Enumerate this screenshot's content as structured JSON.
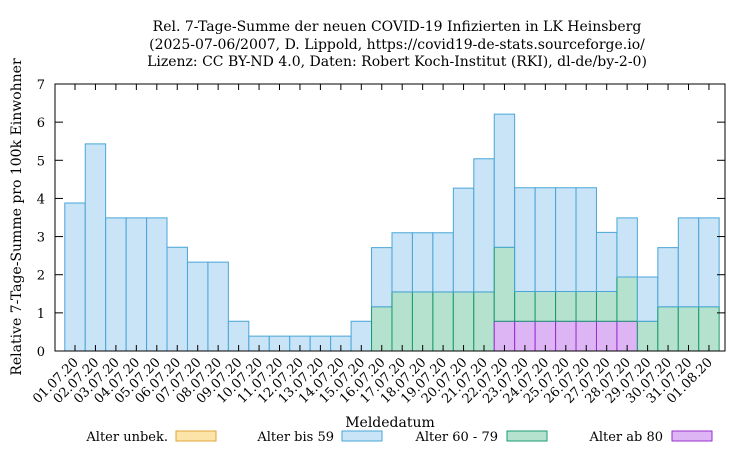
{
  "chart_data": {
    "type": "bar",
    "stacked": true,
    "title_lines": [
      "Rel. 7-Tage-Summe der neuen COVID-19 Infizierten in LK Heinsberg",
      "(2025-07-06/2007, D. Lippold, https://covid19-de-stats.sourceforge.io/",
      "Lizenz: CC BY-ND 4.0, Daten: Robert Koch-Institut (RKI), dl-de/by-2-0)"
    ],
    "xlabel": "Meldedatum",
    "ylabel": "Relative 7-Tage-Summe pro 100k Einwohner",
    "ylim": [
      0,
      7
    ],
    "yticks": [
      "0",
      "1",
      "2",
      "3",
      "4",
      "5",
      "6",
      "7"
    ],
    "grid": false,
    "legend_position": "bottom",
    "categories": [
      "01.07.20",
      "02.07.20",
      "03.07.20",
      "04.07.20",
      "05.07.20",
      "06.07.20",
      "07.07.20",
      "08.07.20",
      "09.07.20",
      "10.07.20",
      "11.07.20",
      "12.07.20",
      "13.07.20",
      "14.07.20",
      "15.07.20",
      "16.07.20",
      "17.07.20",
      "18.07.20",
      "19.07.20",
      "20.07.20",
      "21.07.20",
      "22.07.20",
      "23.07.20",
      "24.07.20",
      "25.07.20",
      "26.07.20",
      "27.07.20",
      "28.07.20",
      "29.07.20",
      "30.07.20",
      "31.07.20",
      "01.08.20"
    ],
    "series": [
      {
        "name": "Alter unbek.",
        "fill": "#fce4a8",
        "stroke": "#e0a43a",
        "values": [
          0,
          0,
          0,
          0,
          0,
          0,
          0,
          0,
          0,
          0,
          0,
          0,
          0,
          0,
          0,
          0,
          0,
          0,
          0,
          0,
          0,
          0,
          0,
          0,
          0,
          0,
          0,
          0,
          0,
          0,
          0,
          0
        ]
      },
      {
        "name": "Alter ab 80",
        "fill": "#ddb4f4",
        "stroke": "#9b2fcf",
        "values": [
          0,
          0,
          0,
          0,
          0,
          0,
          0,
          0,
          0,
          0,
          0,
          0,
          0,
          0,
          0,
          0,
          0,
          0,
          0,
          0,
          0,
          0.78,
          0.78,
          0.78,
          0.78,
          0.78,
          0.78,
          0.78,
          0,
          0,
          0,
          0
        ]
      },
      {
        "name": "Alter 60 - 79",
        "fill": "#b4e2cf",
        "stroke": "#1a9a72",
        "values": [
          0,
          0,
          0,
          0,
          0,
          0,
          0,
          0,
          0,
          0,
          0,
          0,
          0,
          0,
          0,
          1.16,
          1.55,
          1.55,
          1.55,
          1.55,
          1.55,
          1.94,
          0.78,
          0.78,
          0.78,
          0.78,
          0.78,
          1.16,
          0.78,
          1.16,
          1.16,
          1.16
        ]
      },
      {
        "name": "Alter bis 59",
        "fill": "#c9e3f7",
        "stroke": "#4aa6d8",
        "values": [
          3.88,
          5.43,
          3.49,
          3.49,
          3.49,
          2.72,
          2.33,
          2.33,
          0.78,
          0.39,
          0.39,
          0.39,
          0.39,
          0.39,
          0.78,
          1.55,
          1.55,
          1.55,
          1.55,
          2.72,
          3.49,
          3.49,
          2.72,
          2.72,
          2.72,
          2.72,
          1.55,
          1.55,
          1.16,
          1.55,
          2.33,
          2.33
        ]
      }
    ],
    "legend_order": [
      "Alter unbek.",
      "Alter bis 59",
      "Alter 60 - 79",
      "Alter ab 80"
    ]
  }
}
